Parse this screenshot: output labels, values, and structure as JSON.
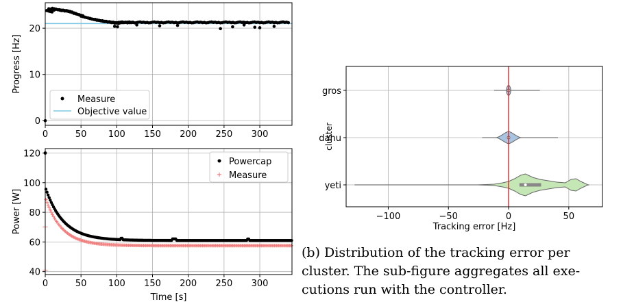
{
  "colors": {
    "measure_dot": "#000000",
    "objective": "#7ec8e3",
    "powercap": "#000000",
    "power_measure": "#f08080",
    "violin_gros": "#a8c4e0",
    "violin_dahu": "#a8c4e0",
    "violin_yeti": "#c5e6b5",
    "zero_line": "#d62728",
    "grid": "#b0b0b0"
  },
  "chart_data": [
    {
      "type": "scatter",
      "ylabel": "Progress [Hz]",
      "xlim": [
        0,
        345
      ],
      "ylim": [
        -1,
        25.5
      ],
      "xticks": [
        "0",
        "50",
        "100",
        "150",
        "200",
        "250",
        "300"
      ],
      "yticks": [
        "0",
        "10",
        "20"
      ],
      "legend": {
        "placement": "lower-left",
        "entries": [
          "Measure",
          "Objective value"
        ]
      },
      "objective_value": 21,
      "series": [
        {
          "name": "Measure",
          "kind": "dots",
          "points": [
            [
              0,
              0
            ],
            [
              2,
              23.8
            ],
            [
              5,
              24.2
            ],
            [
              10,
              24.3
            ],
            [
              15,
              24.1
            ],
            [
              20,
              24.0
            ],
            [
              25,
              23.9
            ],
            [
              30,
              23.8
            ],
            [
              35,
              23.5
            ],
            [
              40,
              23.2
            ],
            [
              45,
              23.0
            ],
            [
              50,
              22.6
            ],
            [
              55,
              22.4
            ],
            [
              60,
              22.2
            ],
            [
              65,
              22.0
            ],
            [
              70,
              21.9
            ],
            [
              75,
              21.7
            ],
            [
              80,
              21.6
            ],
            [
              85,
              21.5
            ],
            [
              90,
              21.4
            ],
            [
              95,
              21.3
            ],
            [
              100,
              21.2
            ],
            [
              105,
              21.3
            ],
            [
              110,
              21.2
            ],
            [
              115,
              21.3
            ],
            [
              120,
              21.2
            ],
            [
              130,
              21.3
            ],
            [
              140,
              21.2
            ],
            [
              150,
              21.3
            ],
            [
              160,
              21.2
            ],
            [
              170,
              21.3
            ],
            [
              180,
              21.2
            ],
            [
              190,
              21.3
            ],
            [
              200,
              21.2
            ],
            [
              210,
              21.3
            ],
            [
              220,
              21.2
            ],
            [
              230,
              21.3
            ],
            [
              240,
              21.2
            ],
            [
              250,
              21.3
            ],
            [
              260,
              21.2
            ],
            [
              270,
              21.3
            ],
            [
              280,
              21.2
            ],
            [
              290,
              21.3
            ],
            [
              300,
              21.2
            ],
            [
              310,
              21.3
            ],
            [
              320,
              21.2
            ],
            [
              330,
              21.3
            ],
            [
              340,
              21.2
            ]
          ],
          "dips": [
            [
              97,
              20.4
            ],
            [
              101,
              20.3
            ],
            [
              128,
              20.7
            ],
            [
              160,
              20.5
            ],
            [
              185,
              20.6
            ],
            [
              245,
              19.9
            ],
            [
              262,
              20.3
            ],
            [
              278,
              20.7
            ],
            [
              293,
              20.2
            ],
            [
              300,
              20.1
            ],
            [
              320,
              20.4
            ]
          ]
        },
        {
          "name": "Objective value",
          "kind": "line",
          "y": 21
        }
      ]
    },
    {
      "type": "scatter",
      "xlabel": "Time [s]",
      "ylabel": "Power [W]",
      "xlim": [
        0,
        345
      ],
      "ylim": [
        38,
        123
      ],
      "xticks": [
        "0",
        "50",
        "100",
        "150",
        "200",
        "250",
        "300"
      ],
      "yticks": [
        "40",
        "60",
        "80",
        "100",
        "120"
      ],
      "legend": {
        "placement": "top-right",
        "entries": [
          "Powercap",
          "Measure"
        ]
      },
      "series": [
        {
          "name": "Powercap",
          "kind": "decay",
          "start": 120,
          "initial": 97,
          "asymptote": 61,
          "tau": 25
        },
        {
          "name": "Measure",
          "kind": "decay",
          "start": 41,
          "initial": 90,
          "asymptote": 57.5,
          "tau": 23
        }
      ]
    },
    {
      "type": "violin",
      "xlabel": "Tracking error [Hz]",
      "ylabel": "cluster",
      "xlim": [
        -135,
        78
      ],
      "xticks": [
        "−100",
        "−50",
        "0",
        "50"
      ],
      "categories": [
        "gros",
        "dahu",
        "yeti"
      ],
      "vline": 0,
      "whiskers": [
        [
          -12,
          26
        ],
        [
          -22,
          41
        ],
        [
          -128,
          67
        ]
      ]
    }
  ],
  "caption": {
    "lines": [
      "(b) Distribution of the tracking error per",
      "cluster. The sub-figure aggregates all exe-",
      "cutions run with the controller."
    ]
  }
}
